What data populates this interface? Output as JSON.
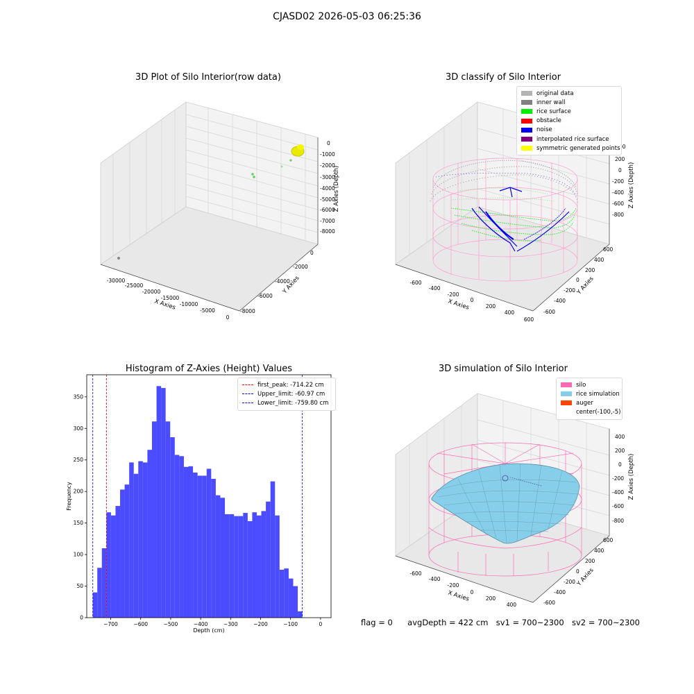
{
  "suptitle": "CJASD02 2026-05-03 06:25:36",
  "panel1": {
    "title": "3D Plot of Silo Interior(row data)",
    "xlabel": "X Axies",
    "ylabel": "Y Axies",
    "zlabel": "Z Axies (Depth)",
    "xticks": [
      "-30000",
      "-25000",
      "-20000",
      "-15000",
      "-10000",
      "-5000",
      "0"
    ],
    "yticks": [
      "0",
      "-2000",
      "-4000",
      "-6000",
      "-8000"
    ],
    "zticks": [
      "0",
      "-1000",
      "-2000",
      "-3000",
      "-4000",
      "-5000",
      "-6000",
      "-7000",
      "-8000"
    ]
  },
  "panel2": {
    "title": "3D classify of Silo Interior",
    "xlabel": "X Axies",
    "ylabel": "Y Axies",
    "zlabel": "Z Axies (Depth)",
    "xticks": [
      "-600",
      "-400",
      "-200",
      "0",
      "200",
      "400",
      "600"
    ],
    "yticks": [
      "600",
      "400",
      "200",
      "0",
      "-200",
      "-400",
      "-600"
    ],
    "zticks": [
      "200",
      "0",
      "-200",
      "-400",
      "-600",
      "-800"
    ],
    "legend": [
      {
        "label": "original data",
        "color": "#b3b3b3"
      },
      {
        "label": "inner wall",
        "color": "#808080"
      },
      {
        "label": "rice surface",
        "color": "#00ee00"
      },
      {
        "label": "obstacle",
        "color": "#ff0000"
      },
      {
        "label": "noise",
        "color": "#0000ee"
      },
      {
        "label": "interpolated rice surface",
        "color": "#800080"
      },
      {
        "label": "symmetric generated points",
        "color": "#ffff00"
      }
    ],
    "zticks_partial": "00"
  },
  "panel4": {
    "title": "3D simulation of Silo Interior",
    "xlabel": "X Axies",
    "ylabel": "Y Axies",
    "zlabel": "Z Axies (Depth)",
    "xticks": [
      "-600",
      "-400",
      "-200",
      "0",
      "200",
      "400"
    ],
    "yticks": [
      "600",
      "400",
      "200",
      "0",
      "-200",
      "-400",
      "-600"
    ],
    "zticks": [
      "400",
      "200",
      "0",
      "-200",
      "-400",
      "-600",
      "-800"
    ],
    "legend": [
      {
        "label": "silo",
        "color": "#ff69b4"
      },
      {
        "label": "rice simulation",
        "color": "#87ceeb"
      },
      {
        "label": "auger",
        "color": "#ff4500"
      },
      {
        "label": "center(-100,-5)",
        "color": "none"
      }
    ]
  },
  "status": {
    "flag": "flag = 0",
    "avg_depth": "avgDepth = 422 cm",
    "sv1": "sv1 = 700~2300",
    "sv2": "sv2 = 700~2300"
  },
  "chart_data": [
    {
      "type": "scatter",
      "title": "3D Plot of Silo Interior(row data)",
      "xlabel": "X Axies",
      "ylabel": "Y Axies",
      "zlabel": "Z Axies (Depth)",
      "xlim": [
        -32000,
        0
      ],
      "ylim": [
        -8500,
        0
      ],
      "zlim": [
        -8000,
        0
      ]
    },
    {
      "type": "scatter",
      "title": "3D classify of Silo Interior",
      "xlabel": "X Axies",
      "ylabel": "Y Axies",
      "zlabel": "Z Axies (Depth)",
      "series": [
        {
          "name": "original data"
        },
        {
          "name": "inner wall"
        },
        {
          "name": "rice surface"
        },
        {
          "name": "obstacle"
        },
        {
          "name": "noise"
        },
        {
          "name": "interpolated rice surface"
        },
        {
          "name": "symmetric generated points"
        }
      ]
    },
    {
      "type": "bar",
      "title": "Histogram of Z-Axies (Height) Values",
      "xlabel": "Depth (cm)",
      "ylabel": "Frequency",
      "xlim": [
        -780,
        35
      ],
      "ylim": [
        0,
        385
      ],
      "bin_start": -760,
      "bin_width": 15.2,
      "values": [
        40,
        79,
        110,
        167,
        162,
        177,
        203,
        211,
        246,
        228,
        248,
        246,
        266,
        311,
        367,
        364,
        311,
        286,
        258,
        256,
        239,
        240,
        230,
        225,
        225,
        236,
        220,
        194,
        190,
        164,
        164,
        161,
        161,
        166,
        153,
        167,
        162,
        169,
        184,
        216,
        162,
        76,
        78,
        62,
        50,
        10
      ],
      "xticks": [
        "-700",
        "-600",
        "-500",
        "-400",
        "-300",
        "-200",
        "-100",
        "0"
      ],
      "yticks": [
        "0",
        "50",
        "100",
        "150",
        "200",
        "250",
        "300",
        "350"
      ],
      "vlines": [
        {
          "label": "first_peak: -714.22 cm",
          "x": -714.22,
          "color": "#ff0000"
        },
        {
          "label": "Upper_limit: -60.97 cm",
          "x": -60.97,
          "color": "#0000ff"
        },
        {
          "label": "Lower_limit: -759.80 cm",
          "x": -759.8,
          "color": "#0000ff"
        }
      ]
    },
    {
      "type": "area",
      "title": "3D simulation of Silo Interior",
      "xlabel": "X Axies",
      "ylabel": "Y Axies",
      "zlabel": "Z Axies (Depth)",
      "series": [
        {
          "name": "silo"
        },
        {
          "name": "rice simulation"
        },
        {
          "name": "auger"
        },
        {
          "name": "center(-100,-5)"
        }
      ]
    }
  ]
}
